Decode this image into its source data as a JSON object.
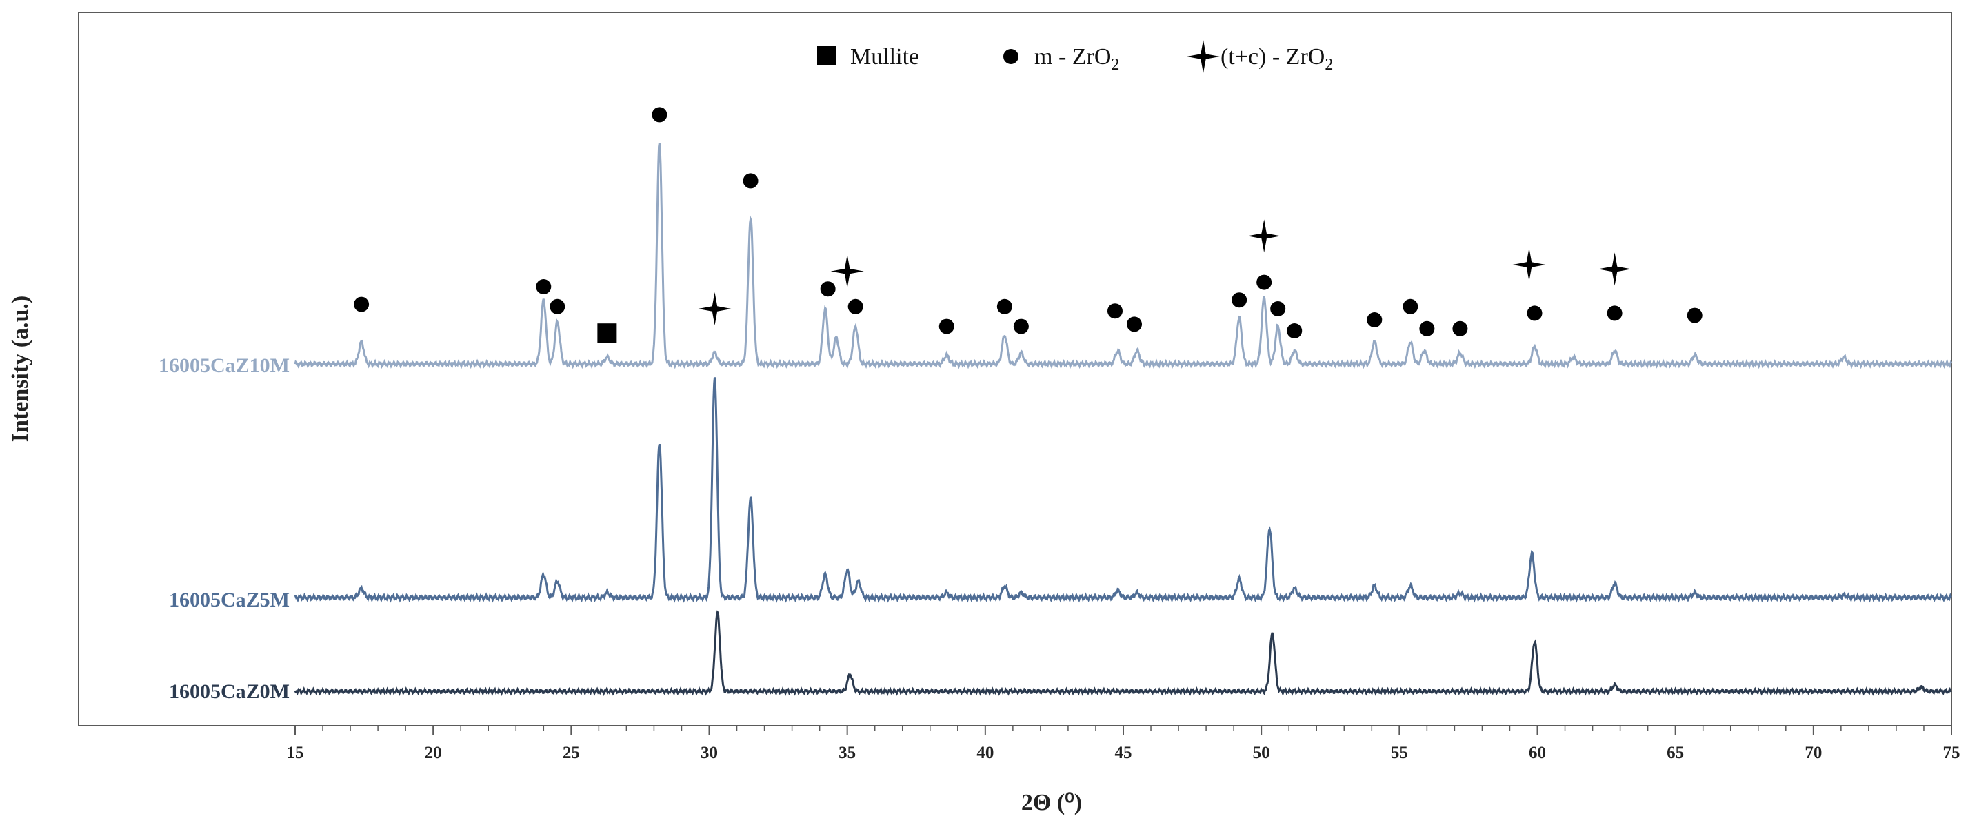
{
  "chart_data": {
    "type": "line",
    "title": "",
    "xlabel": "2Θ (⁰)",
    "ylabel": "Intensity (a.u.)",
    "xlim": [
      15,
      75
    ],
    "xticks": [
      15,
      20,
      25,
      30,
      35,
      40,
      45,
      50,
      55,
      60,
      65,
      70,
      75
    ],
    "grid": false,
    "legend_position": "top-center",
    "legend": [
      {
        "marker": "square",
        "label": "Mullite"
      },
      {
        "marker": "circle",
        "label_main": "m - ZrO",
        "label_sub": "2"
      },
      {
        "marker": "star",
        "label_main": "(t+c) - ZrO",
        "label_sub": "2"
      }
    ],
    "series": [
      {
        "name": "16005CaZ10M",
        "color": "#94a8c3",
        "baseline_y": 0,
        "peaks": [
          {
            "x": 17.4,
            "h": 0.1
          },
          {
            "x": 24.0,
            "h": 0.29
          },
          {
            "x": 24.5,
            "h": 0.19
          },
          {
            "x": 26.3,
            "h": 0.03
          },
          {
            "x": 28.2,
            "h": 1.0
          },
          {
            "x": 30.2,
            "h": 0.05
          },
          {
            "x": 31.5,
            "h": 0.66
          },
          {
            "x": 34.2,
            "h": 0.25
          },
          {
            "x": 34.6,
            "h": 0.12
          },
          {
            "x": 35.3,
            "h": 0.17
          },
          {
            "x": 38.6,
            "h": 0.04
          },
          {
            "x": 40.7,
            "h": 0.13
          },
          {
            "x": 41.3,
            "h": 0.05
          },
          {
            "x": 44.8,
            "h": 0.06
          },
          {
            "x": 45.5,
            "h": 0.06
          },
          {
            "x": 49.2,
            "h": 0.21
          },
          {
            "x": 50.1,
            "h": 0.3
          },
          {
            "x": 50.6,
            "h": 0.17
          },
          {
            "x": 51.2,
            "h": 0.06
          },
          {
            "x": 54.1,
            "h": 0.1
          },
          {
            "x": 55.4,
            "h": 0.1
          },
          {
            "x": 55.9,
            "h": 0.06
          },
          {
            "x": 57.2,
            "h": 0.05
          },
          {
            "x": 59.9,
            "h": 0.08
          },
          {
            "x": 61.3,
            "h": 0.03
          },
          {
            "x": 62.8,
            "h": 0.06
          },
          {
            "x": 65.7,
            "h": 0.04
          },
          {
            "x": 71.1,
            "h": 0.03
          }
        ]
      },
      {
        "name": "16005CaZ5M",
        "color": "#4f6d95",
        "baseline_y": 0,
        "peaks": [
          {
            "x": 17.4,
            "h": 0.04
          },
          {
            "x": 24.0,
            "h": 0.1
          },
          {
            "x": 24.5,
            "h": 0.07
          },
          {
            "x": 26.3,
            "h": 0.02
          },
          {
            "x": 28.2,
            "h": 0.67
          },
          {
            "x": 30.2,
            "h": 0.95
          },
          {
            "x": 31.5,
            "h": 0.43
          },
          {
            "x": 34.2,
            "h": 0.1
          },
          {
            "x": 35.0,
            "h": 0.12
          },
          {
            "x": 35.4,
            "h": 0.07
          },
          {
            "x": 38.6,
            "h": 0.02
          },
          {
            "x": 40.7,
            "h": 0.05
          },
          {
            "x": 41.3,
            "h": 0.02
          },
          {
            "x": 44.8,
            "h": 0.03
          },
          {
            "x": 45.5,
            "h": 0.02
          },
          {
            "x": 49.2,
            "h": 0.08
          },
          {
            "x": 50.3,
            "h": 0.3
          },
          {
            "x": 51.2,
            "h": 0.04
          },
          {
            "x": 54.1,
            "h": 0.05
          },
          {
            "x": 55.4,
            "h": 0.05
          },
          {
            "x": 57.2,
            "h": 0.02
          },
          {
            "x": 59.8,
            "h": 0.19
          },
          {
            "x": 62.8,
            "h": 0.06
          },
          {
            "x": 65.7,
            "h": 0.02
          },
          {
            "x": 71.1,
            "h": 0.01
          }
        ]
      },
      {
        "name": "16005CaZ0M",
        "color": "#2b3a4f",
        "baseline_y": 0,
        "peaks": [
          {
            "x": 30.3,
            "h": 0.38
          },
          {
            "x": 35.1,
            "h": 0.08
          },
          {
            "x": 50.4,
            "h": 0.28
          },
          {
            "x": 59.9,
            "h": 0.24
          },
          {
            "x": 62.8,
            "h": 0.03
          },
          {
            "x": 73.9,
            "h": 0.02
          }
        ]
      }
    ],
    "annotations": [
      {
        "series": "16005CaZ10M",
        "marker": "circle",
        "x": 17.4,
        "h": 0.27
      },
      {
        "series": "16005CaZ10M",
        "marker": "circle",
        "x": 24.0,
        "h": 0.35
      },
      {
        "series": "16005CaZ10M",
        "marker": "circle",
        "x": 24.5,
        "h": 0.26
      },
      {
        "series": "16005CaZ10M",
        "marker": "square",
        "x": 26.3,
        "h": 0.14
      },
      {
        "series": "16005CaZ10M",
        "marker": "circle",
        "x": 28.2,
        "h": 1.13
      },
      {
        "series": "16005CaZ10M",
        "marker": "star",
        "x": 30.2,
        "h": 0.25
      },
      {
        "series": "16005CaZ10M",
        "marker": "circle",
        "x": 31.5,
        "h": 0.83
      },
      {
        "series": "16005CaZ10M",
        "marker": "circle",
        "x": 34.3,
        "h": 0.34
      },
      {
        "series": "16005CaZ10M",
        "marker": "star",
        "x": 35.0,
        "h": 0.42
      },
      {
        "series": "16005CaZ10M",
        "marker": "circle",
        "x": 35.3,
        "h": 0.26
      },
      {
        "series": "16005CaZ10M",
        "marker": "circle",
        "x": 38.6,
        "h": 0.17
      },
      {
        "series": "16005CaZ10M",
        "marker": "circle",
        "x": 40.7,
        "h": 0.26
      },
      {
        "series": "16005CaZ10M",
        "marker": "circle",
        "x": 41.3,
        "h": 0.17
      },
      {
        "series": "16005CaZ10M",
        "marker": "circle",
        "x": 44.7,
        "h": 0.24
      },
      {
        "series": "16005CaZ10M",
        "marker": "circle",
        "x": 45.4,
        "h": 0.18
      },
      {
        "series": "16005CaZ10M",
        "marker": "circle",
        "x": 49.2,
        "h": 0.29
      },
      {
        "series": "16005CaZ10M",
        "marker": "circle",
        "x": 50.1,
        "h": 0.37
      },
      {
        "series": "16005CaZ10M",
        "marker": "star",
        "x": 50.1,
        "h": 0.58
      },
      {
        "series": "16005CaZ10M",
        "marker": "circle",
        "x": 50.6,
        "h": 0.25
      },
      {
        "series": "16005CaZ10M",
        "marker": "circle",
        "x": 51.2,
        "h": 0.15
      },
      {
        "series": "16005CaZ10M",
        "marker": "circle",
        "x": 54.1,
        "h": 0.2
      },
      {
        "series": "16005CaZ10M",
        "marker": "circle",
        "x": 55.4,
        "h": 0.26
      },
      {
        "series": "16005CaZ10M",
        "marker": "circle",
        "x": 56.0,
        "h": 0.16
      },
      {
        "series": "16005CaZ10M",
        "marker": "circle",
        "x": 57.2,
        "h": 0.16
      },
      {
        "series": "16005CaZ10M",
        "marker": "star",
        "x": 59.7,
        "h": 0.45
      },
      {
        "series": "16005CaZ10M",
        "marker": "circle",
        "x": 59.9,
        "h": 0.23
      },
      {
        "series": "16005CaZ10M",
        "marker": "star",
        "x": 62.8,
        "h": 0.43
      },
      {
        "series": "16005CaZ10M",
        "marker": "circle",
        "x": 62.8,
        "h": 0.23
      },
      {
        "series": "16005CaZ10M",
        "marker": "circle",
        "x": 65.7,
        "h": 0.22
      }
    ]
  }
}
